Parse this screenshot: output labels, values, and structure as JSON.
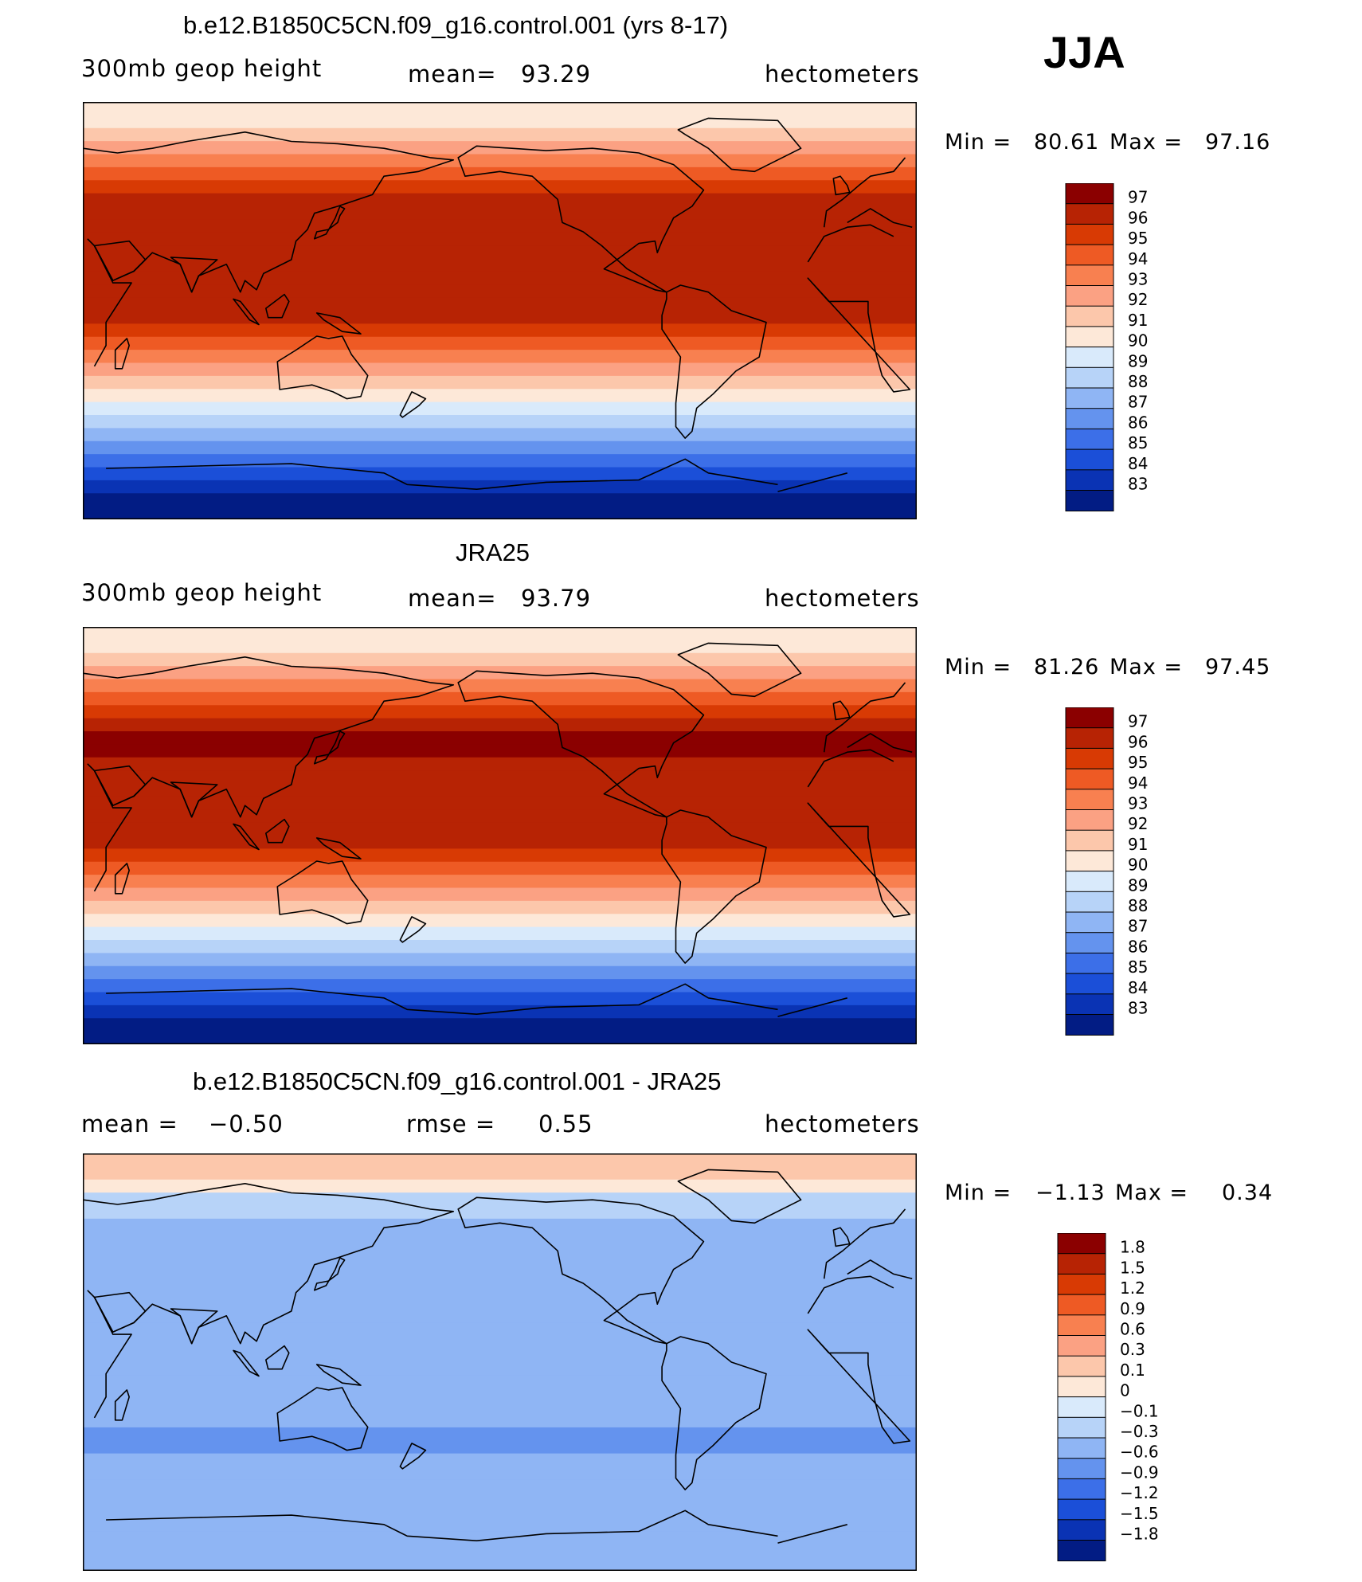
{
  "season": "JJA",
  "chart_data": [
    {
      "type": "heatmap",
      "title": "b.e12.B1850C5CN.f09_g16.control.001 (yrs 8-17)",
      "variable": "300mb geop height",
      "stat_label": "mean=",
      "stat_value": "93.29",
      "units": "hectometers",
      "min_label": "Min =",
      "min_value": "80.61",
      "max_label": "Max =",
      "max_value": "97.16",
      "colorbar_levels": [
        "97",
        "96",
        "95",
        "94",
        "93",
        "92",
        "91",
        "90",
        "89",
        "88",
        "87",
        "86",
        "85",
        "84",
        "83"
      ],
      "colorbar_colors": [
        "#8b0000",
        "#b72304",
        "#d83a04",
        "#ee5a24",
        "#f88050",
        "#fba183",
        "#fcc7ab",
        "#fde8d8",
        "#d9eafb",
        "#b7d3f8",
        "#8fb5f4",
        "#6493ee",
        "#3c6fe8",
        "#1b4fd8",
        "#0a33b4",
        "#021c84"
      ],
      "latitude_bands_90N_to_90S": [
        90,
        90,
        91,
        92,
        93,
        94,
        95,
        96,
        96,
        96,
        96,
        96,
        96,
        96,
        96,
        96,
        96,
        95,
        94,
        93,
        92,
        91,
        90,
        89,
        88,
        87,
        86,
        85,
        84,
        83,
        82,
        82
      ]
    },
    {
      "type": "heatmap",
      "title": "JRA25",
      "variable": "300mb geop height",
      "stat_label": "mean=",
      "stat_value": "93.79",
      "units": "hectometers",
      "min_label": "Min =",
      "min_value": "81.26",
      "max_label": "Max =",
      "max_value": "97.45",
      "colorbar_levels": [
        "97",
        "96",
        "95",
        "94",
        "93",
        "92",
        "91",
        "90",
        "89",
        "88",
        "87",
        "86",
        "85",
        "84",
        "83"
      ],
      "colorbar_colors": [
        "#8b0000",
        "#b72304",
        "#d83a04",
        "#ee5a24",
        "#f88050",
        "#fba183",
        "#fcc7ab",
        "#fde8d8",
        "#d9eafb",
        "#b7d3f8",
        "#8fb5f4",
        "#6493ee",
        "#3c6fe8",
        "#1b4fd8",
        "#0a33b4",
        "#021c84"
      ],
      "latitude_bands_90N_to_90S": [
        90,
        90,
        91,
        92,
        93,
        94,
        95,
        96,
        97,
        97,
        96,
        96,
        96,
        96,
        96,
        96,
        96,
        95,
        94,
        93,
        92,
        91,
        90,
        89,
        88,
        87,
        86,
        85,
        84,
        83,
        82,
        82
      ]
    },
    {
      "type": "heatmap",
      "title": "b.e12.B1850C5CN.f09_g16.control.001 - JRA25",
      "stat1_label": "mean =",
      "stat1_value": "−0.50",
      "stat2_label": "rmse =",
      "stat2_value": "0.55",
      "units": "hectometers",
      "min_label": "Min =",
      "min_value": "−1.13",
      "max_label": "Max =",
      "max_value": "0.34",
      "colorbar_levels": [
        "1.8",
        "1.5",
        "1.2",
        "0.9",
        "0.6",
        "0.3",
        "0.1",
        "0",
        "−0.1",
        "−0.3",
        "−0.6",
        "−0.9",
        "−1.2",
        "−1.5",
        "−1.8"
      ],
      "colorbar_colors": [
        "#8b0000",
        "#b72304",
        "#d83a04",
        "#ee5a24",
        "#f88050",
        "#fba183",
        "#fcc7ab",
        "#fde8d8",
        "#d9eafb",
        "#b7d3f8",
        "#8fb5f4",
        "#6493ee",
        "#3c6fe8",
        "#1b4fd8",
        "#0a33b4",
        "#021c84"
      ],
      "latitude_bands_90N_to_90S": [
        0.2,
        0.2,
        0.0,
        -0.2,
        -0.3,
        -0.4,
        -0.4,
        -0.4,
        -0.4,
        -0.4,
        -0.4,
        -0.4,
        -0.4,
        -0.4,
        -0.4,
        -0.4,
        -0.4,
        -0.4,
        -0.4,
        -0.5,
        -0.6,
        -0.7,
        -0.7,
        -0.6,
        -0.5,
        -0.5,
        -0.5,
        -0.5,
        -0.5,
        -0.4,
        -0.4,
        -0.4
      ]
    }
  ]
}
